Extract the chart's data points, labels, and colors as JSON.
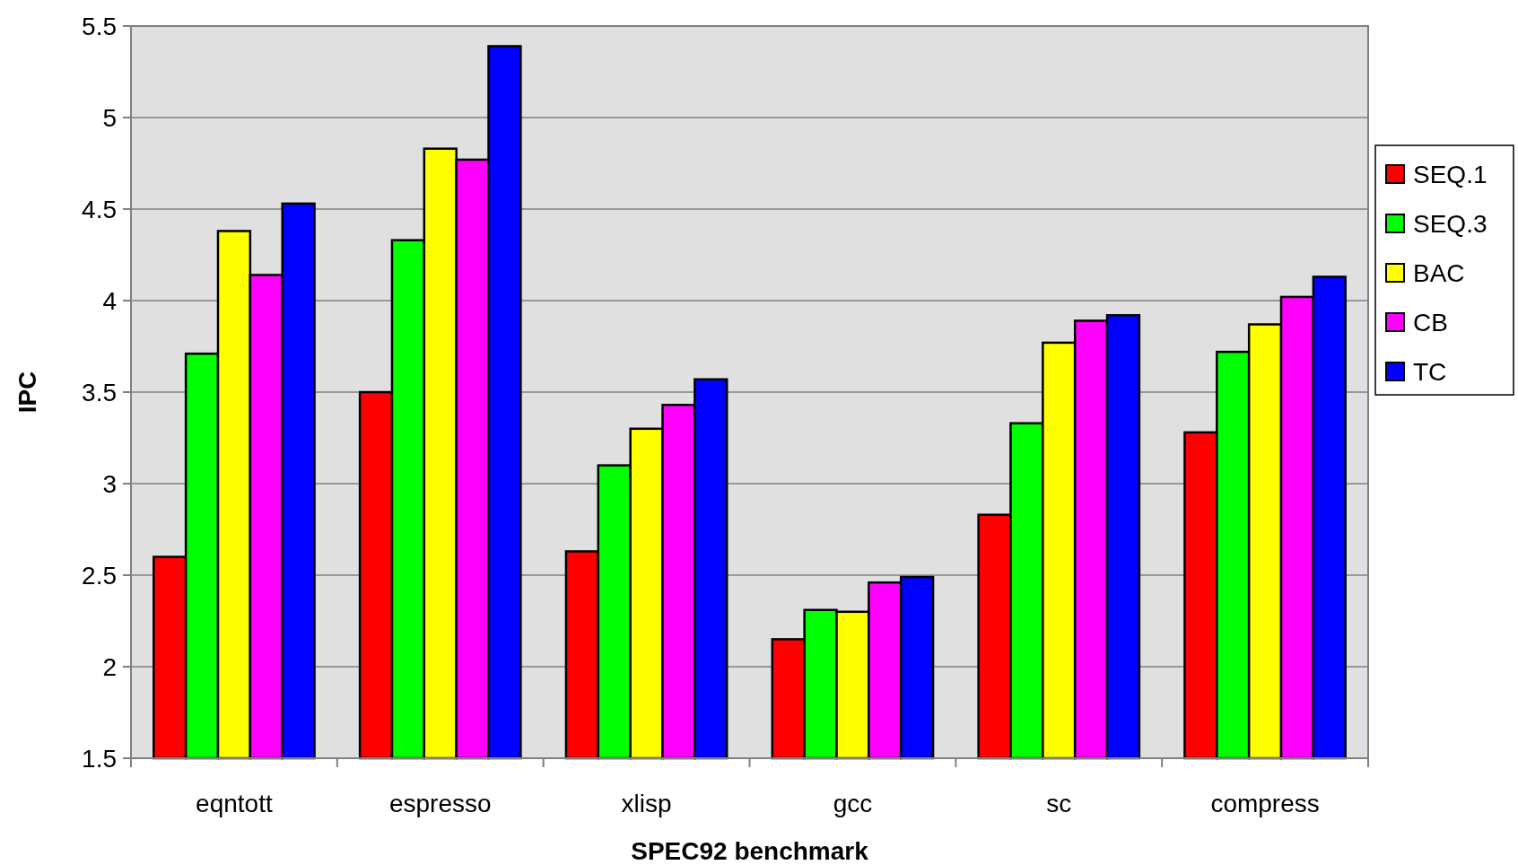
{
  "chart_data": {
    "type": "bar",
    "xlabel": "SPEC92 benchmark",
    "ylabel": "IPC",
    "categories": [
      "eqntott",
      "espresso",
      "xlisp",
      "gcc",
      "sc",
      "compress"
    ],
    "series": [
      {
        "name": "SEQ.1",
        "color": "#ff0000",
        "values": [
          2.6,
          3.5,
          2.63,
          2.15,
          2.83,
          3.28
        ]
      },
      {
        "name": "SEQ.3",
        "color": "#00ff00",
        "values": [
          3.71,
          4.33,
          3.1,
          2.31,
          3.33,
          3.72
        ]
      },
      {
        "name": "BAC",
        "color": "#ffff00",
        "values": [
          4.38,
          4.83,
          3.3,
          2.3,
          3.77,
          3.87
        ]
      },
      {
        "name": "CB",
        "color": "#ff00ff",
        "values": [
          4.14,
          4.77,
          3.43,
          2.46,
          3.89,
          4.02
        ]
      },
      {
        "name": "TC",
        "color": "#0000ff",
        "values": [
          4.53,
          5.39,
          3.57,
          2.49,
          3.92,
          4.13
        ]
      }
    ],
    "ylim": [
      1.5,
      5.5
    ],
    "yticks": [
      1.5,
      2,
      2.5,
      3,
      3.5,
      4,
      4.5,
      5,
      5.5
    ],
    "grid": "y",
    "legend": "right"
  }
}
